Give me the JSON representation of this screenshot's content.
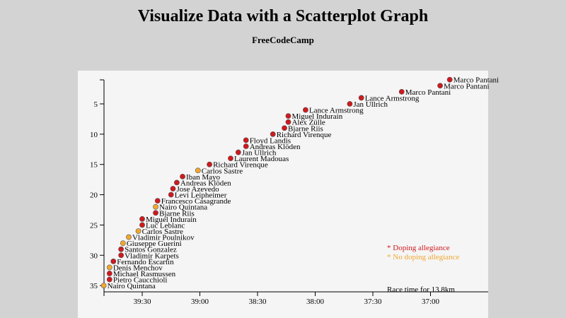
{
  "header": {
    "title": "Visualize Data with a Scatterplot Graph",
    "subtitle": "FreeCodeCamp"
  },
  "chart_data": {
    "type": "scatter",
    "title": "Visualize Data with a Scatterplot Graph",
    "subtitle": "FreeCodeCamp",
    "xlabel": "Race time for 13.8km",
    "x_reversed": true,
    "y_reversed": true,
    "xlim": [
      "39:50",
      "36:50"
    ],
    "ylim": [
      1,
      35
    ],
    "x_ticks": [
      "39:30",
      "39:00",
      "38:30",
      "38:00",
      "37:30",
      "37:00"
    ],
    "y_ticks": [
      5,
      10,
      15,
      20,
      25,
      30,
      35
    ],
    "grid": false,
    "legend_placement": "bottom-right",
    "legend": [
      {
        "label": "* Doping allegiance",
        "color": "#d0191d"
      },
      {
        "label": "* No doping allegiance",
        "color": "#f0a830"
      }
    ],
    "points": [
      {
        "rank": 1,
        "time": "36:50",
        "name": "Marco Pantani",
        "doping": true
      },
      {
        "rank": 2,
        "time": "36:55",
        "name": "Marco Pantani",
        "doping": true
      },
      {
        "rank": 3,
        "time": "37:15",
        "name": "Marco Pantani",
        "doping": true
      },
      {
        "rank": 4,
        "time": "37:36",
        "name": "Lance Armstrong",
        "doping": true
      },
      {
        "rank": 5,
        "time": "37:42",
        "name": "Jan Ullrich",
        "doping": true
      },
      {
        "rank": 6,
        "time": "38:05",
        "name": "Lance Armstrong",
        "doping": true
      },
      {
        "rank": 7,
        "time": "38:14",
        "name": "Miguel Indurain",
        "doping": true
      },
      {
        "rank": 8,
        "time": "38:14",
        "name": "Alex Zülle",
        "doping": true
      },
      {
        "rank": 9,
        "time": "38:16",
        "name": "Bjarne Riis",
        "doping": true
      },
      {
        "rank": 10,
        "time": "38:22",
        "name": "Richard Virenque",
        "doping": true
      },
      {
        "rank": 11,
        "time": "38:36",
        "name": "Floyd Landis",
        "doping": true
      },
      {
        "rank": 12,
        "time": "38:36",
        "name": "Andreas Klöden",
        "doping": true
      },
      {
        "rank": 13,
        "time": "38:40",
        "name": "Jan Ullrich",
        "doping": true
      },
      {
        "rank": 14,
        "time": "38:44",
        "name": "Laurent Madouas",
        "doping": true
      },
      {
        "rank": 15,
        "time": "38:55",
        "name": "Richard Virenque",
        "doping": true
      },
      {
        "rank": 16,
        "time": "39:01",
        "name": "Carlos Sastre",
        "doping": false
      },
      {
        "rank": 17,
        "time": "39:09",
        "name": "Iban Mayo",
        "doping": true
      },
      {
        "rank": 18,
        "time": "39:12",
        "name": "Andreas Klöden",
        "doping": true
      },
      {
        "rank": 19,
        "time": "39:14",
        "name": "Jose Azevedo",
        "doping": true
      },
      {
        "rank": 20,
        "time": "39:15",
        "name": "Levi Leipheimer",
        "doping": true
      },
      {
        "rank": 21,
        "time": "39:22",
        "name": "Francesco Casagrande",
        "doping": true
      },
      {
        "rank": 22,
        "time": "39:23",
        "name": "Nairo Quintana",
        "doping": false
      },
      {
        "rank": 23,
        "time": "39:23",
        "name": "Bjarne Riis",
        "doping": true
      },
      {
        "rank": 24,
        "time": "39:30",
        "name": "Miguel Indurain",
        "doping": true
      },
      {
        "rank": 25,
        "time": "39:30",
        "name": "Luc Leblanc",
        "doping": true
      },
      {
        "rank": 26,
        "time": "39:32",
        "name": "Carlos Sastre",
        "doping": false
      },
      {
        "rank": 27,
        "time": "39:37",
        "name": "Vladimir Poulnikov",
        "doping": false
      },
      {
        "rank": 28,
        "time": "39:40",
        "name": "Giuseppe Guerini",
        "doping": false
      },
      {
        "rank": 29,
        "time": "39:41",
        "name": "Santos Gonzalez",
        "doping": true
      },
      {
        "rank": 30,
        "time": "39:41",
        "name": "Vladimir Karpets",
        "doping": true
      },
      {
        "rank": 31,
        "time": "39:45",
        "name": "Fernando Escartin",
        "doping": true
      },
      {
        "rank": 32,
        "time": "39:47",
        "name": "Denis Menchov",
        "doping": false
      },
      {
        "rank": 33,
        "time": "39:47",
        "name": "Michael Rasmussen",
        "doping": true
      },
      {
        "rank": 34,
        "time": "39:47",
        "name": "Pietro Caucchioli",
        "doping": true
      },
      {
        "rank": 35,
        "time": "39:50",
        "name": "Nairo Quintana",
        "doping": false
      }
    ]
  }
}
